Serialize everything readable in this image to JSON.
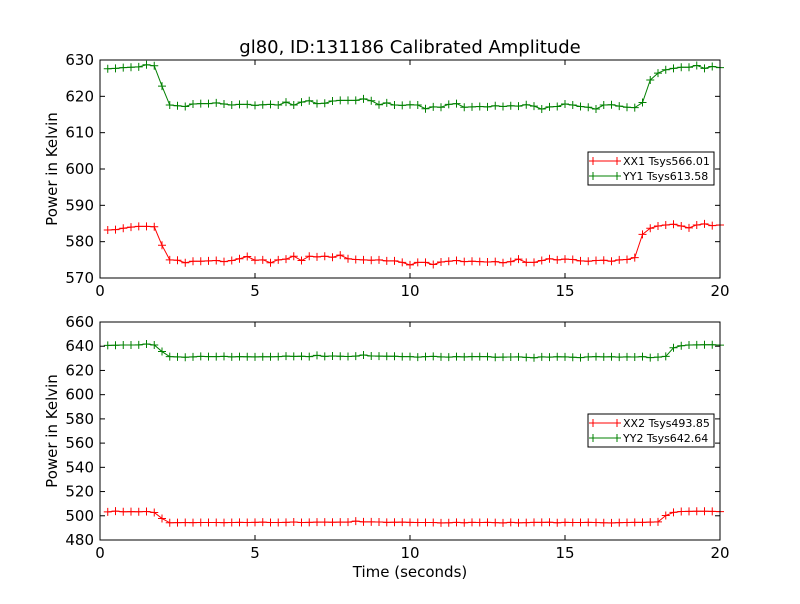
{
  "figure": {
    "title": "gl80, ID:131186 Calibrated Amplitude"
  },
  "chart_data": [
    {
      "type": "line",
      "title": "gl80, ID:131186 Calibrated Amplitude",
      "xlabel": "",
      "ylabel": "Power in Kelvin",
      "xlim": [
        0,
        20
      ],
      "ylim": [
        570,
        630
      ],
      "xticks": [
        0,
        5,
        10,
        15,
        20
      ],
      "yticks": [
        570,
        580,
        590,
        600,
        610,
        620,
        630
      ],
      "grid": false,
      "legend_position": "center-right",
      "series": [
        {
          "name": "XX1 Tsys566.01",
          "color": "#ff0000",
          "marker": "+",
          "x": [
            0.25,
            0.5,
            0.75,
            1.0,
            1.25,
            1.5,
            1.75,
            2.0,
            2.25,
            2.5,
            2.75,
            3.0,
            3.25,
            3.5,
            3.75,
            4.0,
            4.25,
            4.5,
            4.75,
            5.0,
            5.25,
            5.5,
            5.75,
            6.0,
            6.25,
            6.5,
            6.75,
            7.0,
            7.25,
            7.5,
            7.75,
            8.0,
            8.25,
            8.5,
            8.75,
            9.0,
            9.25,
            9.5,
            9.75,
            10.0,
            10.25,
            10.5,
            10.75,
            11.0,
            11.25,
            11.5,
            11.75,
            12.0,
            12.25,
            12.5,
            12.75,
            13.0,
            13.25,
            13.5,
            13.75,
            14.0,
            14.25,
            14.5,
            14.75,
            15.0,
            15.25,
            15.5,
            15.75,
            16.0,
            16.25,
            16.5,
            16.75,
            17.0,
            17.25,
            17.5,
            17.75,
            18.0,
            18.25,
            18.5,
            18.75,
            19.0,
            19.25,
            19.5,
            19.75,
            20.0
          ],
          "y": [
            583.2,
            583.3,
            583.7,
            584.0,
            584.2,
            584.2,
            584.1,
            579.0,
            575.0,
            574.9,
            574.2,
            574.6,
            574.6,
            574.7,
            574.8,
            574.5,
            574.8,
            575.3,
            575.9,
            574.9,
            575.0,
            574.2,
            575.0,
            575.2,
            576.0,
            574.8,
            576.0,
            575.8,
            576.0,
            575.7,
            576.3,
            575.3,
            575.1,
            575.0,
            574.9,
            575.0,
            574.7,
            574.7,
            574.3,
            573.6,
            574.3,
            574.3,
            573.7,
            574.4,
            574.6,
            574.8,
            574.5,
            574.6,
            574.5,
            574.4,
            574.5,
            574.2,
            574.5,
            575.2,
            574.3,
            574.3,
            574.8,
            575.3,
            575.0,
            575.2,
            575.1,
            574.7,
            574.6,
            574.8,
            574.9,
            574.6,
            575.0,
            575.1,
            575.6,
            582.0,
            583.7,
            584.3,
            584.6,
            584.8,
            584.3,
            583.8,
            584.6,
            584.9,
            584.4,
            584.6
          ]
        },
        {
          "name": "YY1 Tsys613.58",
          "color": "#008000",
          "marker": "+",
          "x": [
            0.25,
            0.5,
            0.75,
            1.0,
            1.25,
            1.5,
            1.75,
            2.0,
            2.25,
            2.5,
            2.75,
            3.0,
            3.25,
            3.5,
            3.75,
            4.0,
            4.25,
            4.5,
            4.75,
            5.0,
            5.25,
            5.5,
            5.75,
            6.0,
            6.25,
            6.5,
            6.75,
            7.0,
            7.25,
            7.5,
            7.75,
            8.0,
            8.25,
            8.5,
            8.75,
            9.0,
            9.25,
            9.5,
            9.75,
            10.0,
            10.25,
            10.5,
            10.75,
            11.0,
            11.25,
            11.5,
            11.75,
            12.0,
            12.25,
            12.5,
            12.75,
            13.0,
            13.25,
            13.5,
            13.75,
            14.0,
            14.25,
            14.5,
            14.75,
            15.0,
            15.25,
            15.5,
            15.75,
            16.0,
            16.25,
            16.5,
            16.75,
            17.0,
            17.25,
            17.5,
            17.75,
            18.0,
            18.25,
            18.5,
            18.75,
            19.0,
            19.25,
            19.5,
            19.75,
            20.0
          ],
          "y": [
            627.6,
            627.7,
            627.9,
            628.0,
            628.1,
            628.7,
            628.4,
            622.8,
            617.6,
            617.4,
            617.2,
            617.9,
            618.0,
            618.0,
            618.2,
            617.9,
            617.6,
            617.8,
            617.8,
            617.5,
            617.7,
            617.8,
            617.6,
            618.4,
            617.6,
            618.4,
            618.8,
            618.0,
            618.1,
            618.7,
            618.9,
            618.9,
            618.9,
            619.3,
            618.8,
            617.7,
            618.2,
            617.6,
            617.5,
            617.7,
            617.6,
            616.6,
            617.1,
            617.0,
            617.8,
            618.0,
            617.0,
            617.1,
            617.2,
            617.1,
            617.4,
            617.2,
            617.4,
            617.3,
            617.7,
            617.3,
            616.5,
            617.1,
            617.2,
            617.9,
            617.6,
            617.2,
            617.0,
            616.5,
            617.6,
            617.7,
            617.3,
            617.0,
            616.9,
            618.3,
            624.5,
            626.4,
            627.3,
            627.7,
            628.0,
            628.0,
            628.5,
            627.7,
            628.2,
            627.9
          ]
        }
      ]
    },
    {
      "type": "line",
      "title": "",
      "xlabel": "Time (seconds)",
      "ylabel": "Power in Kelvin",
      "xlim": [
        0,
        20
      ],
      "ylim": [
        480,
        660
      ],
      "xticks": [
        0,
        5,
        10,
        15,
        20
      ],
      "yticks": [
        480,
        500,
        520,
        540,
        560,
        580,
        600,
        620,
        640,
        660
      ],
      "grid": false,
      "legend_position": "center-right",
      "series": [
        {
          "name": "XX2 Tsys493.85",
          "color": "#ff0000",
          "marker": "+",
          "x": [
            0.25,
            0.5,
            0.75,
            1.0,
            1.25,
            1.5,
            1.75,
            2.0,
            2.25,
            2.5,
            2.75,
            3.0,
            3.25,
            3.5,
            3.75,
            4.0,
            4.25,
            4.5,
            4.75,
            5.0,
            5.25,
            5.5,
            5.75,
            6.0,
            6.25,
            6.5,
            6.75,
            7.0,
            7.25,
            7.5,
            7.75,
            8.0,
            8.25,
            8.5,
            8.75,
            9.0,
            9.25,
            9.5,
            9.75,
            10.0,
            10.25,
            10.5,
            10.75,
            11.0,
            11.25,
            11.5,
            11.75,
            12.0,
            12.25,
            12.5,
            12.75,
            13.0,
            13.25,
            13.5,
            13.75,
            14.0,
            14.25,
            14.5,
            14.75,
            15.0,
            15.25,
            15.5,
            15.75,
            16.0,
            16.25,
            16.5,
            16.75,
            17.0,
            17.25,
            17.5,
            17.75,
            18.0,
            18.25,
            18.5,
            18.75,
            19.0,
            19.25,
            19.5,
            19.75,
            20.0
          ],
          "y": [
            503.2,
            503.8,
            503.3,
            503.4,
            503.3,
            503.5,
            502.7,
            497.8,
            494.2,
            494.3,
            494.5,
            494.3,
            494.5,
            494.4,
            494.5,
            494.3,
            494.4,
            494.6,
            494.5,
            494.6,
            494.8,
            494.5,
            494.4,
            494.6,
            494.9,
            494.5,
            494.6,
            494.8,
            494.8,
            494.7,
            494.8,
            494.8,
            495.6,
            495.0,
            495.0,
            494.9,
            494.6,
            494.7,
            494.8,
            494.6,
            494.4,
            494.5,
            494.4,
            494.1,
            494.2,
            494.6,
            494.2,
            494.6,
            494.4,
            494.6,
            494.3,
            494.1,
            494.6,
            494.2,
            494.3,
            494.6,
            494.6,
            494.7,
            494.2,
            494.6,
            494.5,
            494.4,
            494.6,
            494.5,
            494.2,
            494.1,
            494.3,
            494.5,
            494.6,
            494.6,
            494.8,
            495.0,
            500.2,
            502.8,
            503.5,
            503.6,
            503.7,
            503.7,
            503.6,
            503.4
          ]
        },
        {
          "name": "YY2 Tsys642.64",
          "color": "#008000",
          "marker": "+",
          "x": [
            0.25,
            0.5,
            0.75,
            1.0,
            1.25,
            1.5,
            1.75,
            2.0,
            2.25,
            2.5,
            2.75,
            3.0,
            3.25,
            3.5,
            3.75,
            4.0,
            4.25,
            4.5,
            4.75,
            5.0,
            5.25,
            5.5,
            5.75,
            6.0,
            6.25,
            6.5,
            6.75,
            7.0,
            7.25,
            7.5,
            7.75,
            8.0,
            8.25,
            8.5,
            8.75,
            9.0,
            9.25,
            9.5,
            9.75,
            10.0,
            10.25,
            10.5,
            10.75,
            11.0,
            11.25,
            11.5,
            11.75,
            12.0,
            12.25,
            12.5,
            12.75,
            13.0,
            13.25,
            13.5,
            13.75,
            14.0,
            14.25,
            14.5,
            14.75,
            15.0,
            15.25,
            15.5,
            15.75,
            16.0,
            16.25,
            16.5,
            16.75,
            17.0,
            17.25,
            17.5,
            17.75,
            18.0,
            18.25,
            18.5,
            18.75,
            19.0,
            19.25,
            19.5,
            19.75,
            20.0
          ],
          "y": [
            640.7,
            640.8,
            641.0,
            641.0,
            641.1,
            641.8,
            641.0,
            635.6,
            631.4,
            631.2,
            630.9,
            631.2,
            631.6,
            631.4,
            631.4,
            631.6,
            631.2,
            631.4,
            631.3,
            631.2,
            631.3,
            631.3,
            631.4,
            631.8,
            631.6,
            631.7,
            631.4,
            632.4,
            631.6,
            631.9,
            631.7,
            631.5,
            631.8,
            632.7,
            631.9,
            631.8,
            631.7,
            631.7,
            631.4,
            631.4,
            631.0,
            631.4,
            631.6,
            631.2,
            631.0,
            631.4,
            631.2,
            631.4,
            631.4,
            631.4,
            630.9,
            631.0,
            631.1,
            631.2,
            630.8,
            630.5,
            631.2,
            631.0,
            631.3,
            631.2,
            630.9,
            630.6,
            631.2,
            631.4,
            631.2,
            631.3,
            631.0,
            631.2,
            631.1,
            631.4,
            630.6,
            631.0,
            631.6,
            638.7,
            640.4,
            641.0,
            641.1,
            641.2,
            641.2,
            640.9
          ]
        }
      ]
    }
  ]
}
